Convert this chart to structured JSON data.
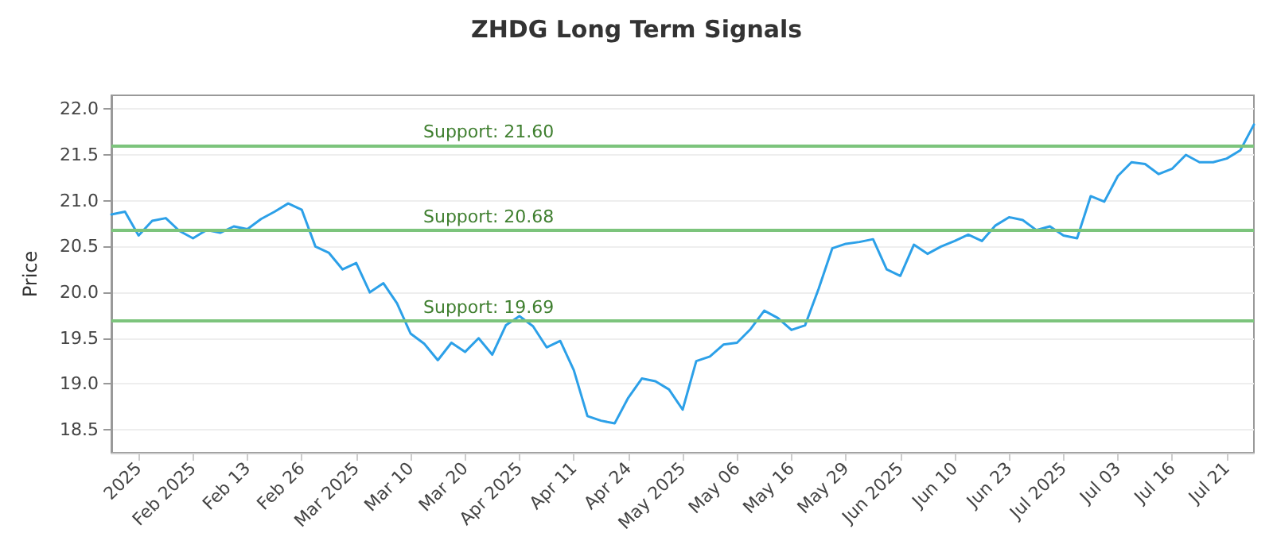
{
  "chart_data": {
    "type": "line",
    "title": "ZHDG Long Term Signals",
    "ylabel": "Price",
    "categories": [
      null,
      null,
      "2025",
      null,
      null,
      null,
      "Feb 2025",
      null,
      null,
      null,
      "Feb 13",
      null,
      null,
      null,
      "Feb 26",
      null,
      null,
      null,
      "Mar 2025",
      null,
      null,
      null,
      "Mar 10",
      null,
      null,
      null,
      "Mar 20",
      null,
      null,
      null,
      "Apr 2025",
      null,
      null,
      null,
      "Apr 11",
      null,
      null,
      null,
      "Apr 24",
      null,
      null,
      null,
      "May 2025",
      null,
      null,
      null,
      "May 06",
      null,
      null,
      null,
      "May 16",
      null,
      null,
      null,
      "May 29",
      null,
      null,
      null,
      "Jun 2025",
      null,
      null,
      null,
      "Jun 10",
      null,
      null,
      null,
      "Jun 23",
      null,
      null,
      null,
      "Jul 2025",
      null,
      null,
      null,
      "Jul 03",
      null,
      null,
      null,
      "Jul 16",
      null,
      null,
      null,
      "Jul 21",
      null,
      null
    ],
    "series": [
      {
        "color": "#2ca0e8",
        "values": [
          20.85,
          20.88,
          20.62,
          20.78,
          20.81,
          20.67,
          20.59,
          20.68,
          20.65,
          20.72,
          20.69,
          20.8,
          20.88,
          20.97,
          20.9,
          20.5,
          20.43,
          20.25,
          20.32,
          20.0,
          20.1,
          19.88,
          19.55,
          19.44,
          19.26,
          19.45,
          19.35,
          19.5,
          19.32,
          19.64,
          19.74,
          19.63,
          19.4,
          19.47,
          19.15,
          18.65,
          18.6,
          18.57,
          18.85,
          19.06,
          19.03,
          18.94,
          18.72,
          19.25,
          19.3,
          19.43,
          19.45,
          19.6,
          19.8,
          19.72,
          19.59,
          19.64,
          20.04,
          20.48,
          20.53,
          20.55,
          20.58,
          20.25,
          20.18,
          20.52,
          20.42,
          20.5,
          20.56,
          20.63,
          20.56,
          20.73,
          20.82,
          20.79,
          20.68,
          20.72,
          20.62,
          20.59,
          21.05,
          20.99,
          21.27,
          21.42,
          21.4,
          21.29,
          21.35,
          21.5,
          21.42,
          21.42,
          21.46,
          21.55,
          21.83
        ]
      }
    ],
    "ylim": [
      18.25,
      22.15
    ],
    "yticks": [
      {
        "value": 18.5,
        "label": "18.5"
      },
      {
        "value": 19,
        "label": "19.0"
      },
      {
        "value": 19.5,
        "label": "19.5"
      },
      {
        "value": 20,
        "label": "20.0"
      },
      {
        "value": 20.5,
        "label": "20.5"
      },
      {
        "value": 21,
        "label": "21.0"
      },
      {
        "value": 21.5,
        "label": "21.5"
      },
      {
        "value": 22,
        "label": "22.0"
      }
    ],
    "ref_lines": [
      {
        "axis": "y",
        "value": 21.6,
        "label": "Support: 21.60",
        "color": "#7cc47c"
      },
      {
        "axis": "y",
        "value": 20.68,
        "label": "Support: 20.68",
        "color": "#7cc47c"
      },
      {
        "axis": "y",
        "value": 19.69,
        "label": "Support: 19.69",
        "color": "#7cc47c"
      }
    ],
    "grid": "y",
    "marker": "none",
    "line_style": "solid"
  }
}
